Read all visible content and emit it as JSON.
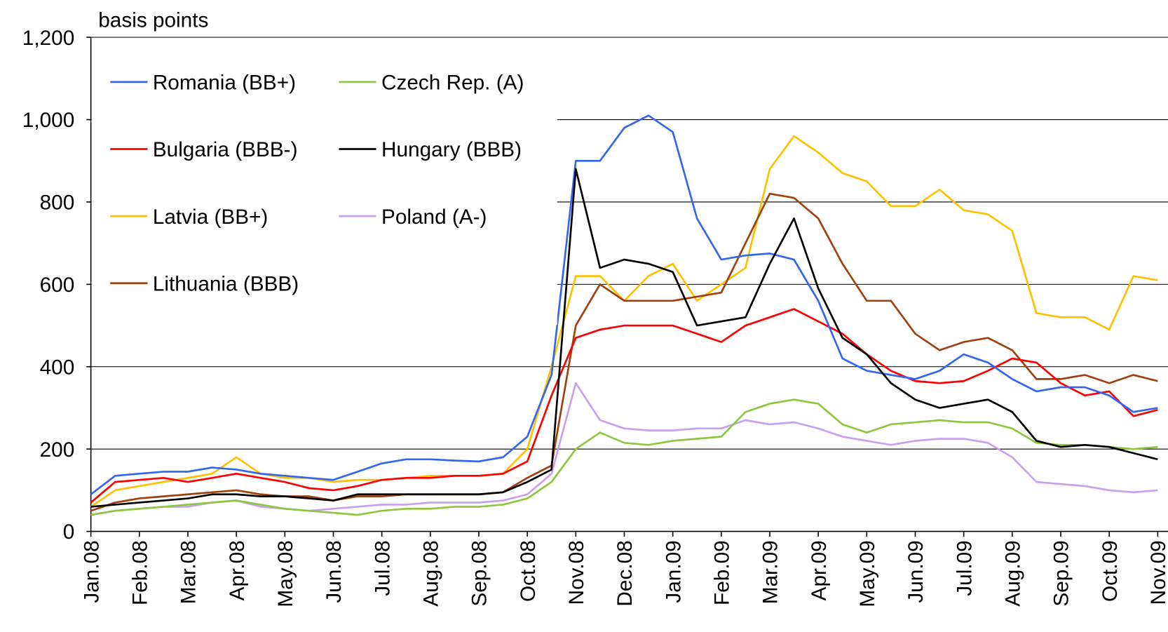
{
  "chart_data": {
    "type": "line",
    "y_label": "basis points",
    "categories": [
      "Jan.08",
      null,
      "Feb.08",
      null,
      "Mar.08",
      null,
      "Apr.08",
      null,
      "May.08",
      null,
      "Jun.08",
      null,
      "Jul.08",
      null,
      "Aug.08",
      null,
      "Sep.08",
      null,
      "Oct.08",
      null,
      "Nov.08",
      null,
      "Dec.08",
      null,
      "Jan.09",
      null,
      "Feb.09",
      null,
      "Mar.09",
      null,
      "Apr.09",
      null,
      "May.09",
      null,
      "Jun.09",
      null,
      "Jul.09",
      null,
      "Aug.09",
      null,
      "Sep.09",
      null,
      "Oct.09",
      null,
      "Nov.09"
    ],
    "ylim": [
      0,
      1200
    ],
    "yticks": [
      0,
      200,
      400,
      600,
      800,
      {
        "value": 1000,
        "label": "1,000"
      },
      {
        "value": 1200,
        "label": "1,200"
      }
    ],
    "grid": true,
    "legend": "upper left",
    "series": [
      {
        "name": "Romania (BB+)",
        "color": "#3366ee",
        "values": [
          90,
          135,
          140,
          145,
          145,
          155,
          150,
          140,
          135,
          130,
          125,
          145,
          165,
          175,
          175,
          172,
          170,
          180,
          230,
          380,
          900,
          900,
          980,
          1010,
          970,
          760,
          660,
          670,
          675,
          660,
          560,
          420,
          390,
          380,
          370,
          390,
          430,
          410,
          370,
          340,
          350,
          350,
          330,
          290,
          300
        ]
      },
      {
        "name": "Czech Rep. (A)",
        "color": "#8dc63f",
        "values": [
          40,
          50,
          55,
          60,
          65,
          70,
          75,
          65,
          55,
          50,
          45,
          40,
          50,
          55,
          55,
          60,
          60,
          65,
          80,
          120,
          200,
          240,
          215,
          210,
          220,
          225,
          230,
          290,
          310,
          320,
          310,
          260,
          240,
          260,
          265,
          270,
          265,
          265,
          250,
          215,
          210,
          210,
          205,
          200,
          205
        ]
      },
      {
        "name": "Bulgaria (BBB-)",
        "color": "#ff0000",
        "values": [
          70,
          120,
          125,
          130,
          120,
          130,
          140,
          130,
          120,
          105,
          100,
          110,
          125,
          130,
          130,
          135,
          135,
          140,
          170,
          330,
          470,
          490,
          500,
          500,
          500,
          480,
          460,
          500,
          520,
          540,
          510,
          480,
          430,
          390,
          365,
          360,
          365,
          390,
          420,
          410,
          360,
          330,
          340,
          280,
          295
        ]
      },
      {
        "name": "Hungary (BBB)",
        "color": "#000000",
        "values": [
          60,
          65,
          70,
          75,
          80,
          90,
          90,
          85,
          85,
          80,
          75,
          90,
          90,
          90,
          90,
          90,
          90,
          95,
          120,
          150,
          880,
          640,
          660,
          650,
          630,
          500,
          510,
          520,
          650,
          760,
          590,
          470,
          430,
          360,
          320,
          300,
          310,
          320,
          290,
          220,
          205,
          210,
          205,
          190,
          175
        ]
      },
      {
        "name": "Latvia (BB+)",
        "color": "#ffc000",
        "values": [
          60,
          100,
          110,
          120,
          130,
          140,
          180,
          140,
          130,
          130,
          120,
          125,
          125,
          130,
          135,
          135,
          135,
          140,
          200,
          400,
          620,
          620,
          560,
          620,
          650,
          560,
          600,
          640,
          880,
          960,
          920,
          870,
          850,
          790,
          790,
          830,
          780,
          770,
          730,
          530,
          520,
          520,
          490,
          620,
          610
        ]
      },
      {
        "name": "Poland (A-)",
        "color": "#c8a0f0",
        "values": [
          40,
          50,
          55,
          60,
          60,
          70,
          75,
          60,
          55,
          50,
          55,
          60,
          65,
          65,
          70,
          70,
          70,
          75,
          90,
          140,
          360,
          270,
          250,
          245,
          245,
          250,
          250,
          270,
          260,
          265,
          250,
          230,
          220,
          210,
          220,
          225,
          225,
          215,
          180,
          120,
          115,
          110,
          100,
          95,
          100
        ]
      },
      {
        "name": "Lithuania (BBB)",
        "color": "#a0400e",
        "values": [
          50,
          70,
          80,
          85,
          90,
          95,
          100,
          90,
          85,
          85,
          75,
          85,
          85,
          90,
          90,
          90,
          90,
          95,
          130,
          160,
          500,
          600,
          560,
          560,
          560,
          570,
          580,
          700,
          820,
          810,
          760,
          650,
          560,
          560,
          480,
          440,
          460,
          470,
          440,
          370,
          370,
          380,
          360,
          380,
          365
        ]
      }
    ]
  }
}
